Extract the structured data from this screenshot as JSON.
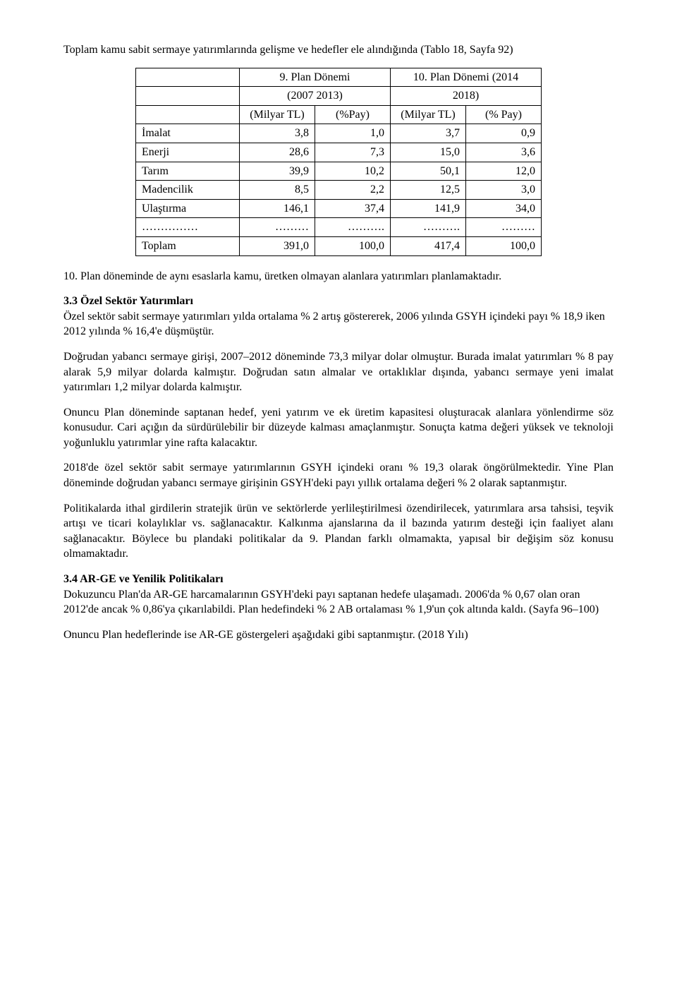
{
  "intro": "Toplam kamu sabit sermaye yatırımlarında gelişme ve hedefler ele alındığında (Tablo 18, Sayfa 92)",
  "table": {
    "hdr1_c2": "9. Plan Dönemi",
    "hdr1_c3": "10. Plan Dönemi (2014",
    "hdr2_c2": "(2007 2013)",
    "hdr2_c3": "2018)",
    "hdr3_c2": "(Milyar TL)",
    "hdr3_c3": "(%Pay)",
    "hdr3_c4": "(Milyar TL)",
    "hdr3_c5": "(% Pay)",
    "rows": [
      {
        "label": "İmalat",
        "a": "3,8",
        "b": "1,0",
        "c": "3,7",
        "d": "0,9"
      },
      {
        "label": "Enerji",
        "a": "28,6",
        "b": "7,3",
        "c": "15,0",
        "d": "3,6"
      },
      {
        "label": "Tarım",
        "a": "39,9",
        "b": "10,2",
        "c": "50,1",
        "d": "12,0"
      },
      {
        "label": "Madencilik",
        "a": "8,5",
        "b": "2,2",
        "c": "12,5",
        "d": "3,0"
      },
      {
        "label": "Ulaştırma",
        "a": "146,1",
        "b": "37,4",
        "c": "141,9",
        "d": "34,0"
      },
      {
        "label": "……………",
        "a": "………",
        "b": "……….",
        "c": "……….",
        "d": "………"
      },
      {
        "label": "Toplam",
        "a": "391,0",
        "b": "100,0",
        "c": "417,4",
        "d": "100,0"
      }
    ]
  },
  "p1": "10. Plan döneminde de aynı esaslarla kamu, üretken olmayan alanlara yatırımları planlamaktadır.",
  "h1": "3.3 Özel Sektör Yatırımları",
  "p2": "Özel sektör sabit sermaye yatırımları yılda ortalama % 2 artış göstererek, 2006 yılında GSYH içindeki payı % 18,9 iken 2012 yılında % 16,4'e düşmüştür.",
  "p3": "Doğrudan yabancı sermaye girişi, 2007–2012 döneminde 73,3 milyar dolar olmuştur. Burada imalat yatırımları % 8 pay alarak 5,9 milyar dolarda kalmıştır. Doğrudan satın almalar ve ortaklıklar dışında, yabancı sermaye yeni imalat yatırımları 1,2 milyar dolarda kalmıştır.",
  "p4": "Onuncu Plan döneminde saptanan hedef, yeni yatırım ve ek üretim kapasitesi oluşturacak alanlara yönlendirme söz konusudur. Cari açığın da sürdürülebilir bir düzeyde kalması amaçlanmıştır. Sonuçta katma değeri yüksek ve teknoloji yoğunluklu yatırımlar yine rafta kalacaktır.",
  "p5": "2018'de özel sektör sabit sermaye yatırımlarının GSYH içindeki oranı % 19,3 olarak öngörülmektedir. Yine Plan döneminde doğrudan yabancı sermaye girişinin GSYH'deki payı yıllık ortalama değeri % 2 olarak saptanmıştır.",
  "p6": "Politikalarda ithal girdilerin stratejik ürün ve sektörlerde yerlileştirilmesi özendirilecek, yatırımlara arsa tahsisi, teşvik artışı ve ticari kolaylıklar vs. sağlanacaktır. Kalkınma ajanslarına da il bazında yatırım desteği için faaliyet alanı sağlanacaktır. Böylece bu plandaki politikalar da 9. Plandan farklı olmamakta, yapısal bir değişim söz konusu olmamaktadır.",
  "h2": "3.4 AR-GE ve Yenilik Politikaları",
  "p7": "Dokuzuncu Plan'da AR-GE harcamalarının GSYH'deki payı saptanan hedefe ulaşamadı. 2006'da % 0,67 olan oran 2012'de ancak % 0,86'ya çıkarılabildi. Plan hedefindeki % 2 AB ortalaması % 1,9'un çok altında kaldı. (Sayfa 96–100)",
  "p8": "Onuncu Plan hedeflerinde ise AR-GE göstergeleri aşağıdaki gibi saptanmıştır. (2018 Yılı)"
}
